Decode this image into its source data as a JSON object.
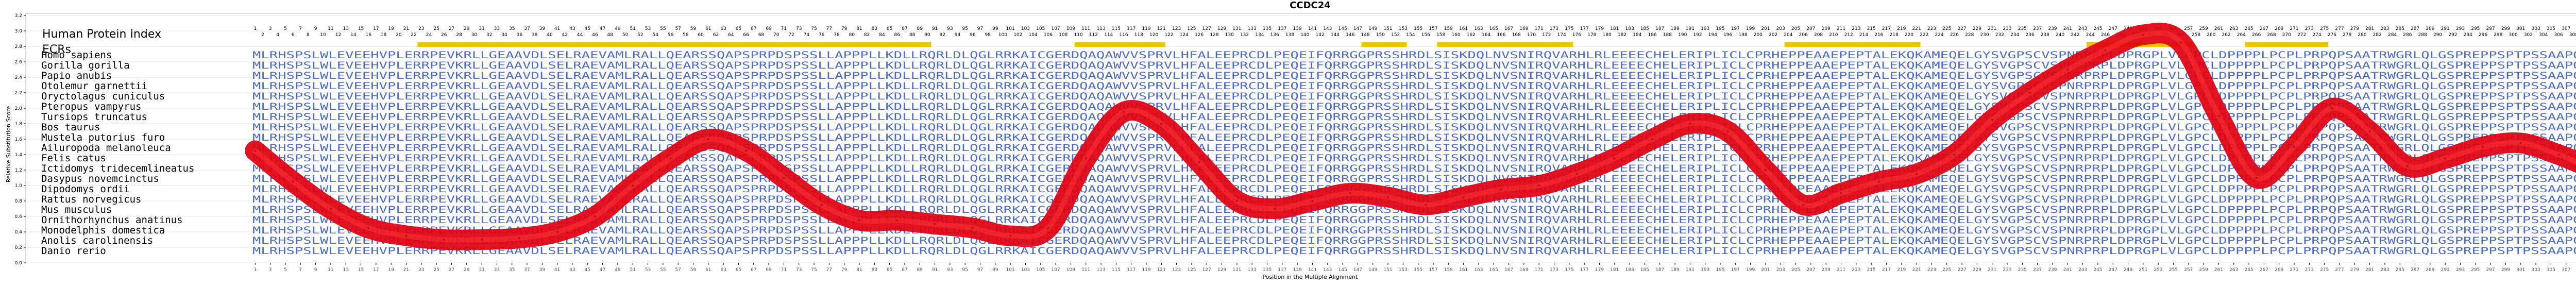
{
  "chart_data": {
    "type": "line",
    "title": "CCDC24",
    "xlabel": "Position in the Multiple Alignment",
    "ylabel": "Relative Substitution Score",
    "panel_title": "Human Protein Index",
    "ecr_label": "ECRs",
    "xlim": [
      1,
      313
    ],
    "ylim": [
      0.0,
      3.2
    ],
    "yticks": [
      0.0,
      0.2,
      0.4,
      0.6,
      0.8,
      1.0,
      1.2,
      1.4,
      1.6,
      1.8,
      2.0,
      2.2,
      2.4,
      2.6,
      2.8,
      3.0,
      3.2
    ],
    "xtick_step": 2,
    "human_index_na_range": [
      252,
      256
    ],
    "ecr_regions": [
      [
        23,
        90
      ],
      [
        110,
        121
      ],
      [
        148,
        153
      ],
      [
        158,
        175
      ],
      [
        204,
        221
      ],
      [
        244,
        257
      ],
      [
        265,
        275
      ]
    ],
    "species": [
      "Homo sapiens",
      "Gorilla gorilla",
      "Papio anubis",
      "Otolemur garnettii",
      "Oryctolagus cuniculus",
      "Pteropus vampyrus",
      "Tursiops truncatus",
      "Bos taurus",
      "Mustela putorius furo",
      "Ailuropoda melanoleuca",
      "Felis catus",
      "Ictidomys tridecemlineatus",
      "Dasypus novemcinctus",
      "Dipodomys ordii",
      "Rattus norvegicus",
      "Mus musculus",
      "Ornithorhynchus anatinus",
      "Monodelphis domestica",
      "Anolis carolinensis",
      "Danio rerio"
    ],
    "sequences": [
      "MLRHSPSLWLEVEEHVPLERRPEVKRLLGEAAVDLSELRAEVAMLRALLQEARSSQAPSPRPDSPSSLLAPPPLLKDLLRQRLDLQGLRRKAICGERDQAQAWVVSPRVLHFALEEPRCDLPEQEIFQRRGGPRSSHRDLSISKDQLNVSNIRQVARHLRLEEEECHELERIPLICLCPRHEPPEAAEPEPTALEKQKAMEQELGYSVGPSCVSPNRPRPLDPRGPLVLGPCLDPPPPLPCPLPRPQPSAATRWGRLQLGSPREPPSPTPSSAAPQPAST",
      "MLRHSPSLWLEVEEHVPLERRPEVKRLLGEAAVDLSELRAEVAMLRALLQEARSSQAPSPRPDSPSSLLAPPPLLKDLLRQRLDLQGLRRKAICGERDQAQAWVVSPRVLHFALEEPRCDLPEQEIFQRRGGPRSSHRDLSISKDQLNVSNIRQVARHLRLEEEECHELERIPLICLCPRHEPPEAAEPEPTALEKQKAMEQELGYSVGPSCVSPNRPRPLDPRGPLVLGPCLDPPPPLPCPLPRPQPSAATRWGRLQLGSPREPPSPTPSSAAPQPAST",
      "MLRHSPSLWLEVEEHVPLERRPEVKRLLGEAAVDLSELRAEVAMLRALLQEARSSQAPSPRPDSPSSLLAPPPLLKDLLRQRLDLQGLRRKAICGERDQAQAWVVSPRVLHFALEEPRCDLPEQEIFQRRGGPRSSHRDLSISKDQLNVSNIRQVARHLRLEEEECHELERIPLICLCPRHEPPEAAEPEPTALEKQKAMEQELGYSVGPSCVSPNRPRPLDPRGPLVLGPCLDPPPPLPCPLPRPQPSAATRWGRLQLGSPREPPSPTPSSAAPQPAST",
      "MLRHSPSLWLEVEEHVPLERRPEVKRLLGEAAVDLSELRAEVAMLRALLQEARSSQAPSPRPDSPSSLLAPPPLLKDLLRQRLDLQGLRRKAICGERDQAQAWVVSPRVLHFALEEPRCDLPEQEIFQRRGGPRSSHRDLSISKDQLNVSNIRQVARHLRLEEEECHELERIPLICLCPRHEPPEAAEPEPTALEKQKAMEQELGYSVGPSCVSPNRPRPLDPRGPLVLGPCLDPPPPLPCPLPRPQPSAATRWGRLQLGSPREPPSPTPSSAAPQPAST",
      "MLRHSPSLWLEVEEHVPLERRPEVKRLLGEAAVDLSELRAEVAMLRALLQEARSSQAPSPRPDSPSSLLAPPPLLKDLLRQRLDLQGLRRKAICGERDQAQAWVVSPRVLHFALEEPRCDLPEQEIFQRRGGPRSSHRDLSISKDQLNVSNIRQVARHLRLEEEECHELERIPLICLCPRHEPPEAAEPEPTALEKQKAMEQELGYSVGPSCVSPNRPRPLDPRGPLVLGPCLDPPPPLPCPLPRPQPSAATRWGRLQLGSPREPPSPTPSSAAPQPAST",
      "MLRHSPSLWLEVEEHVPLERRPEVKRLLGEAAVDLSELRAEVAMLRALLQEARSSQAPSPRPDSPSSLLAPPPLLKDLLRQRLDLQGLRRKAICGERDQAQAWVVSPRVLHFALEEPRCDLPEQEIFQRRGGPRSSHRDLSISKDQLNVSNIRQVARHLRLEEEECHELERIPLICLCPRHEPPEAAEPEPTALEKQKAMEQELGYSVGPSCVSPNRPRPLDPRGPLVLGPCLDPPPPLPCPLPRPQPSAATRWGRLQLGSPREPPSPTPSSAAPQPAST",
      "MLRHSPSLWLEVEEHVPLERRPEVKRLLGEAAVDLSELRAEVAMLRALLQEARSSQAPSPRPDSPSSLLAPPPLLKDLLRQRLDLQGLRRKAICGERDQAQAWVVSPRVLHFALEEPRCDLPEQEIFQRRGGPRSSHRDLSISKDQLNVSNIRQVARHLRLEEEECHELERIPLICLCPRHEPPEAAEPEPTALEKQKAMEQELGYSVGPSCVSPNRPRPLDPRGPLVLGPCLDPPPPLPCPLPRPQPSAATRWGRLQLGSPREPPSPTPSSAAPQPAST",
      "MLRHSPSLWLEVEEHVPLERRPEVKRLLGEAAVDLSELRAEVAMLRALLQEARSSQAPSPRPDSPSSLLAPPPLLKDLLRQRLDLQGLRRKAICGERDQAQAWVVSPRVLHFALEEPRCDLPEQEIFQRRGGPRSSHRDLSISKDQLNVSNIRQVARHLRLEEEECHELERIPLICLCPRHEPPEAAEPEPTALEKQKAMEQELGYSVGPSCVSPNRPRPLDPRGPLVLGPCLDPPPPLPCPLPRPQPSAATRWGRLQLGSPREPPSPTPSSAAPQPAST",
      "MLRHSPSLWLEVEEHVPLERRPEVKRLLGEAAVDLSELRAEVAMLRALLQEARSSQAPSPRPDSPSSLLAPPPLLKDLLRQRLDLQGLRRKAICGERDQAQAWVVSPRVLHFALEEPRCDLPEQEIFQRRGGPRSSHRDLSISKDQLNVSNIRQVARHLRLEEEECHELERIPLICLCPRHEPPEAAEPEPTALEKQKAMEQELGYSVGPSCVSPNRPRPLDPRGPLVLGPCLDPPPPLPCPLPRPQPSAATRWGRLQLGSPREPPSPTPSSAAPQPAST",
      "MLRHSPSLWLEVEEHVPLERRPEVKRLLGEAAVDLSELRAEVAMLRALLQEARSSQAPSPRPDSPSSLLAPPPLLKDLLRQRLDLQGLRRKAICGERDQAQAWVVSPRVLHFALEEPRCDLPEQEIFQRRGGPRSSHRDLSISKDQLNVSNIRQVARHLRLEEEECHELERIPLICLCPRHEPPEAAEPEPTALEKQKAMEQELGYSVGPSCVSPNRPRPLDPRGPLVLGPCLDPPPPLPCPLPRPQPSAATRWGRLQLGSPREPPSPTPSSAAPQPAST",
      "MLRHSPSLWLEVEEHVPLERRPEVKRLLGEAAVDLSELRAEVAMLRALLQEARSSQAPSPRPDSPSSLLAPPPLLKDLLRQRLDLQGLRRKAICGERDQAQAWVVSPRVLHFALEEPRCDLPEQEIFQRRGGPRSSHRDLSISKDQLNVSNIRQVARHLRLEEEECHELERIPLICLCPRHEPPEAAEPEPTALEKQKAMEQELGYSVGPSCVSPNRPRPLDPRGPLVLGPCLDPPPPLPCPLPRPQPSAATRWGRLQLGSPREPPSPTPSSAAPQPAST",
      "MLRHSPSLWLEVEEHVPLERRPEVKRLLGEAAVDLSELRAEVAMLRALLQEARSSQAPSPRPDSPSSLLAPPPLLKDLLRQRLDLQGLRRKAICGERDQAQAWVVSPRVLHFALEEPRCDLPEQEIFQRRGGPRSSHRDLSISKDQLNVSNIRQVARHLRLEEEECHELERIPLICLCPRHEPPEAAEPEPTALEKQKAMEQELGYSVGPSCVSPNRPRPLDPRGPLVLGPCLDPPPPLPCPLPRPQPSAATRWGRLQLGSPREPPSPTPSSAAPQPAST",
      "MLRHSPSLWLEVEEHVPLERRPEVKRLLGEAAVDLSELRAEVAMLRALLQEARSSQAPSPRPDSPSSLLAPPPLLKDLLRQRLDLQGLRRKAICGERDQAQAWVVSPRVLHFALEEPRCDLPEQEIFQRRGGPRSSHRDLSISKDQLNVSNIRQVARHLRLEEEECHELERIPLICLCPRHEPPEAAEPEPTALEKQKAMEQELGYSVGPSCVSPNRPRPLDPRGPLVLGPCLDPPPPLPCPLPRPQPSAATRWGRLQLGSPREPPSPTPSSAAPQPAST",
      "MLRHSPSLWLEVEEHVPLERRPEVKRLLGEAAVDLSELRAEVAMLRALLQEARSSQAPSPRPDSPSSLLAPPPLLKDLLRQRLDLQGLRRKAICGERDQAQAWVVSPRVLHFALEEPRCDLPEQEIFQRRGGPRSSHRDLSISKDQLNVSNIRQVARHLRLEEEECHELERIPLICLCPRHEPPEAAEPEPTALEKQKAMEQELGYSVGPSCVSPNRPRPLDPRGPLVLGPCLDPPPPLPCPLPRPQPSAATRWGRLQLGSPREPPSPTPSSAAPQPAST",
      "MLRHSPSLWLEVEEHVPLERRPEVKRLLGEAAVDLSELRAEVAMLRALLQEARSSQAPSPRPDSPSSLLAPPPLLKDLLRQRLDLQGLRRKAICGERDQAQAWVVSPRVLHFALEEPRCDLPEQEIFQRRGGPRSSHRDLSISKDQLNVSNIRQVARHLRLEEEECHELERIPLICLCPRHEPPEAAEPEPTALEKQKAMEQELGYSVGPSCVSPNRPRPLDPRGPLVLGPCLDPPPPLPCPLPRPQPSAATRWGRLQLGSPREPPSPTPSSAAPQPAST",
      "MLRHSPSLWLEVEEHVPLERRPEVKRLLGEAAVDLSELRAEVAMLRALLQEARSSQAPSPRPDSPSSLLAPPPLLKDLLRQRLDLQGLRRKAICGERDQAQAWVVSPRVLHFALEEPRCDLPEQEIFQRRGGPRSSHRDLSISKDQLNVSNIRQVARHLRLEEEECHELERIPLICLCPRHEPPEAAEPEPTALEKQKAMEQELGYSVGPSCVSPNRPRPLDPRGPLVLGPCLDPPPPLPCPLPRPQPSAATRWGRLQLGSPREPPSPTPSSAAPQPAST",
      "MLRHSPSLWLEVEEHVPLERRPEVKRLLGEAAVDLSELRAEVAMLRALLQEARSSQAPSPRPDSPSSLLAPPPLLKDLLRQRLDLQGLRRKAICGERDQAQAWVVSPRVLHFALEEPRCDLPEQEIFQRRGGPRSSHRDLSISKDQLNVSNIRQVARHLRLEEEECHELERIPLICLCPRHEPPEAAEPEPTALEKQKAMEQELGYSVGPSCVSPNRPRPLDPRGPLVLGPCLDPPPPLPCPLPRPQPSAATRWGRLQLGSPREPPSPTPSSAAPQPAST",
      "MLRHSPSLWLEVEEHVPLERRPEVKRLLGEAAVDLSELRAEVAMLRALLQEARSSQAPSPRPDSPSSLLAPPPLLKDLLRQRLDLQGLRRKAICGERDQAQAWVVSPRVLHFALEEPRCDLPEQEIFQRRGGPRSSHRDLSISKDQLNVSNIRQVARHLRLEEEECHELERIPLICLCPRHEPPEAAEPEPTALEKQKAMEQELGYSVGPSCVSPNRPRPLDPRGPLVLGPCLDPPPPLPCPLPRPQPSAATRWGRLQLGSPREPPSPTPSSAAPQPAST",
      "MLRHSPSLWLEVEEHVPLERRPEVKRLLGEAAVDLSELRAEVAMLRALLQEARSSQAPSPRPDSPSSLLAPPPLLKDLLRQRLDLQGLRRKAICGERDQAQAWVVSPRVLHFALEEPRCDLPEQEIFQRRGGPRSSHRDLSISKDQLNVSNIRQVARHLRLEEEECHELERIPLICLCPRHEPPEAAEPEPTALEKQKAMEQELGYSVGPSCVSPNRPRPLDPRGPLVLGPCLDPPPPLPCPLPRPQPSAATRWGRLQLGSPREPPSPTPSSAAPQPAST",
      "MLRHSPSLWLEVEEHVPLERRPEVKRLLGEAAVDLSELRAEVAMLRALLQEARSSQAPSPRPDSPSSLLAPPPLLKDLLRQRLDLQGLRRKAICGERDQAQAWVVSPRVLHFALEEPRCDLPEQEIFQRRGGPRSSHRDLSISKDQLNVSNIRQVARHLRLEEEECHELERIPLICLCPRHEPPEAAEPEPTALEKQKAMEQELGYSVGPSCVSPNRPRPLDPRGPLVLGPCLDPPPPLPCPLPRPQPSAATRWGRLQLGSPREPPSPTPSSAAPQPAST"
    ],
    "series": [
      {
        "x": [
          1,
          6,
          11,
          16,
          21,
          26,
          31,
          36,
          41,
          46,
          51,
          56,
          61,
          66,
          71,
          76,
          81,
          86,
          91,
          96,
          101,
          106,
          111,
          116,
          121,
          126,
          131,
          136,
          141,
          146,
          151,
          156,
          161,
          166,
          171,
          176,
          181,
          186,
          191,
          196,
          201,
          206,
          211,
          216,
          221,
          226,
          231,
          236,
          241,
          246,
          251,
          256,
          261,
          266,
          271,
          276,
          281,
          286,
          291,
          296,
          301,
          306,
          311,
          313
        ],
        "y": [
          1.45,
          1.05,
          0.7,
          0.45,
          0.35,
          0.3,
          0.3,
          0.32,
          0.4,
          0.6,
          1.0,
          1.35,
          1.6,
          1.45,
          1.1,
          0.75,
          0.55,
          0.55,
          0.5,
          0.45,
          0.35,
          0.45,
          1.35,
          1.95,
          1.8,
          1.3,
          0.8,
          0.7,
          0.8,
          0.9,
          0.85,
          0.75,
          0.85,
          0.95,
          1.0,
          1.15,
          1.35,
          1.6,
          1.8,
          1.7,
          1.2,
          0.75,
          0.9,
          1.05,
          1.15,
          1.4,
          1.85,
          2.2,
          2.5,
          2.75,
          2.95,
          2.85,
          1.9,
          1.1,
          1.5,
          2.0,
          1.7,
          1.25,
          1.35,
          1.5,
          1.55,
          1.4,
          1.2,
          1.15
        ]
      }
    ]
  },
  "colors": {
    "line": "#e0000f",
    "line_highlight": "#ff3a3a",
    "ecr": "#f5c400",
    "sequence_text": "#4d6cc9",
    "grid": "#e6e6e6",
    "axis": "#000000"
  }
}
